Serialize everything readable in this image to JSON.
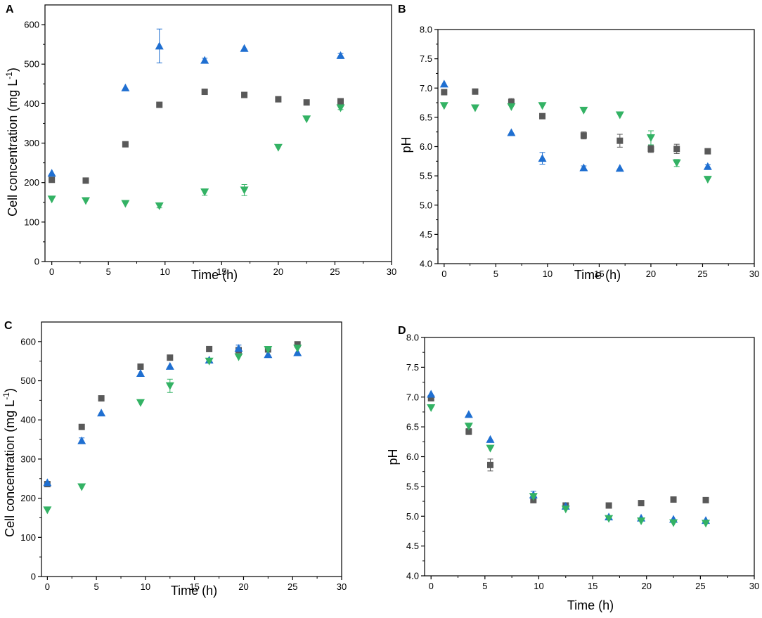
{
  "colors": {
    "series1": "#595959",
    "series2": "#1f6fd1",
    "series3": "#33b264",
    "axis": "#000000"
  },
  "chart_data": [
    {
      "panel": "A",
      "type": "scatter",
      "xlabel": "Time (h)",
      "ylabel": "Cell concentration (mg L-1)",
      "ylabel_main": "Cell concentration (mg L",
      "ylabel_sup": "-1",
      "ylabel_end": ")",
      "xlim": [
        -0.6,
        30
      ],
      "ylim": [
        0,
        650
      ],
      "xticks": [
        0,
        5,
        10,
        15,
        20,
        25,
        30
      ],
      "yticks": [
        0,
        100,
        200,
        300,
        400,
        500,
        600
      ],
      "series": [
        {
          "marker": "square",
          "color": "#595959",
          "x": [
            0,
            3,
            6.5,
            9.5,
            13.5,
            17,
            20,
            22.5,
            25.5
          ],
          "y": [
            207,
            205,
            297,
            397,
            430,
            422,
            411,
            403,
            406
          ],
          "err": [
            0,
            0,
            0,
            0,
            0,
            0,
            0,
            0,
            0
          ]
        },
        {
          "marker": "triangle-up",
          "color": "#1f6fd1",
          "x": [
            0,
            6.5,
            9.5,
            13.5,
            17,
            25.5
          ],
          "y": [
            224,
            440,
            546,
            510,
            540,
            522
          ],
          "err": [
            0,
            0,
            43,
            5,
            0,
            5
          ]
        },
        {
          "marker": "triangle-down",
          "color": "#33b264",
          "x": [
            0,
            3,
            6.5,
            9.5,
            13.5,
            17,
            20,
            22.5,
            25.5
          ],
          "y": [
            158,
            154,
            147,
            141,
            176,
            181,
            289,
            361,
            389
          ],
          "err": [
            0,
            0,
            0,
            5,
            8,
            14,
            0,
            0,
            4
          ]
        }
      ]
    },
    {
      "panel": "B",
      "type": "scatter",
      "xlabel": "Time (h)",
      "ylabel": "pH",
      "xlim": [
        -0.6,
        30
      ],
      "ylim": [
        4.0,
        8.0
      ],
      "xticks": [
        0,
        5,
        10,
        15,
        20,
        25,
        30
      ],
      "yticks": [
        4.0,
        4.5,
        5.0,
        5.5,
        6.0,
        6.5,
        7.0,
        7.5,
        8.0
      ],
      "series": [
        {
          "marker": "square",
          "color": "#595959",
          "x": [
            0,
            3,
            6.5,
            9.5,
            13.5,
            17,
            20,
            22.5,
            25.5
          ],
          "y": [
            6.93,
            6.94,
            6.76,
            6.52,
            6.19,
            6.1,
            5.96,
            5.96,
            5.92
          ],
          "err": [
            0,
            0,
            0.06,
            0,
            0.06,
            0.11,
            0.06,
            0.08,
            0
          ]
        },
        {
          "marker": "triangle-up",
          "color": "#1f6fd1",
          "x": [
            0,
            6.5,
            9.5,
            13.5,
            17,
            25.5
          ],
          "y": [
            7.07,
            6.24,
            5.8,
            5.64,
            5.63,
            5.66
          ],
          "err": [
            0,
            0,
            0.1,
            0.03,
            0,
            0.03
          ]
        },
        {
          "marker": "triangle-down",
          "color": "#33b264",
          "x": [
            0,
            3,
            6.5,
            9.5,
            13.5,
            17,
            20,
            22.5,
            25.5
          ],
          "y": [
            6.7,
            6.66,
            6.68,
            6.7,
            6.62,
            6.54,
            6.15,
            5.72,
            5.44
          ],
          "err": [
            0,
            0,
            0,
            0,
            0,
            0,
            0.12,
            0.06,
            0
          ]
        }
      ]
    },
    {
      "panel": "C",
      "type": "scatter",
      "xlabel": "Time (h)",
      "ylabel": "Cell concentration (mg L-1)",
      "ylabel_main": "Cell concentration (mg L",
      "ylabel_sup": "-1",
      "ylabel_end": ")",
      "xlim": [
        -0.6,
        30
      ],
      "ylim": [
        0,
        650
      ],
      "xticks": [
        0,
        5,
        10,
        15,
        20,
        25,
        30
      ],
      "yticks": [
        0,
        100,
        200,
        300,
        400,
        500,
        600
      ],
      "series": [
        {
          "marker": "square",
          "color": "#595959",
          "x": [
            0,
            3.5,
            5.5,
            9.5,
            12.5,
            16.5,
            19.5,
            22.5,
            25.5
          ],
          "y": [
            236,
            382,
            455,
            536,
            559,
            581,
            578,
            580,
            593
          ],
          "err": [
            0,
            0,
            0,
            0,
            0,
            0,
            0,
            0,
            0
          ]
        },
        {
          "marker": "triangle-up",
          "color": "#1f6fd1",
          "x": [
            0,
            3.5,
            5.5,
            9.5,
            12.5,
            16.5,
            19.5,
            22.5,
            25.5
          ],
          "y": [
            240,
            347,
            418,
            519,
            537,
            553,
            583,
            567,
            572
          ],
          "err": [
            0,
            7,
            0,
            0,
            0,
            0,
            8,
            0,
            0
          ]
        },
        {
          "marker": "triangle-down",
          "color": "#33b264",
          "x": [
            0,
            3.5,
            9.5,
            12.5,
            16.5,
            19.5,
            22.5,
            25.5
          ],
          "y": [
            170,
            229,
            444,
            487,
            550,
            561,
            580,
            583
          ],
          "err": [
            0,
            0,
            0,
            17,
            0,
            0,
            0,
            0
          ]
        }
      ]
    },
    {
      "panel": "D",
      "type": "scatter",
      "xlabel": "Time (h)",
      "ylabel": "pH",
      "xlim": [
        -0.6,
        30
      ],
      "ylim": [
        4.0,
        8.0
      ],
      "xticks": [
        0,
        5,
        10,
        15,
        20,
        25,
        30
      ],
      "yticks": [
        4.0,
        4.5,
        5.0,
        5.5,
        6.0,
        6.5,
        7.0,
        7.5,
        8.0
      ],
      "series": [
        {
          "marker": "square",
          "color": "#595959",
          "x": [
            0,
            3.5,
            5.5,
            9.5,
            12.5,
            16.5,
            19.5,
            22.5,
            25.5
          ],
          "y": [
            6.98,
            6.42,
            5.86,
            5.27,
            5.18,
            5.18,
            5.22,
            5.28,
            5.27
          ],
          "err": [
            0,
            0.05,
            0.1,
            0,
            0,
            0,
            0,
            0,
            0
          ]
        },
        {
          "marker": "triangle-up",
          "color": "#1f6fd1",
          "x": [
            0,
            3.5,
            5.5,
            9.5,
            12.5,
            16.5,
            19.5,
            22.5,
            25.5
          ],
          "y": [
            7.05,
            6.71,
            6.29,
            5.36,
            5.17,
            4.99,
            4.97,
            4.95,
            4.93
          ],
          "err": [
            0,
            0,
            0,
            0.06,
            0,
            0,
            0,
            0,
            0
          ]
        },
        {
          "marker": "triangle-down",
          "color": "#33b264",
          "x": [
            0,
            3.5,
            5.5,
            9.5,
            12.5,
            16.5,
            19.5,
            22.5,
            25.5
          ],
          "y": [
            6.82,
            6.51,
            6.14,
            5.33,
            5.12,
            4.96,
            4.92,
            4.89,
            4.88
          ],
          "err": [
            0,
            0,
            0,
            0,
            0,
            0,
            0,
            0,
            0
          ]
        }
      ]
    }
  ]
}
